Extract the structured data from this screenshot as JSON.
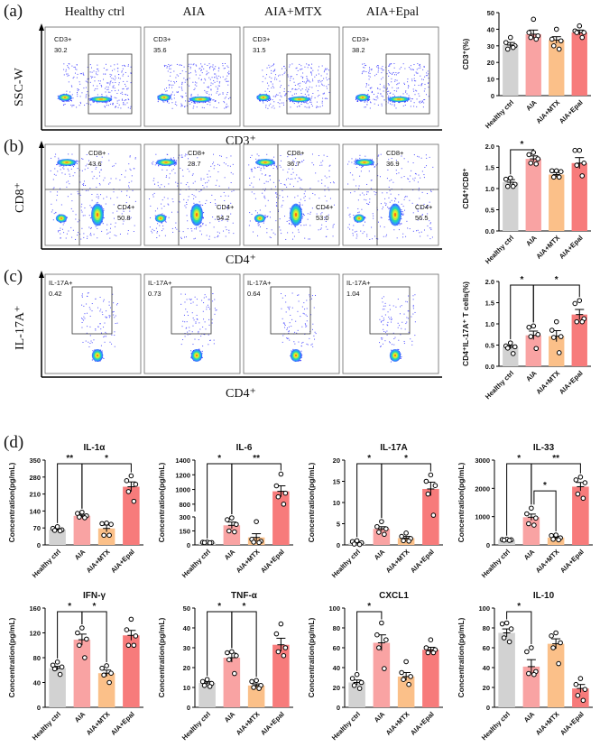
{
  "panel_labels": [
    "(a)",
    "(b)",
    "(c)",
    "(d)"
  ],
  "groups": [
    "Healthy ctrl",
    "AIA",
    "AIA+MTX",
    "AIA+Epal"
  ],
  "colors": {
    "Healthy ctrl": "#d2d2d2",
    "AIA": "#f9a3a3",
    "AIA+MTX": "#fbc089",
    "AIA+Epal": "#f77b7b"
  },
  "flow": {
    "a": {
      "y_label": "SSC-W",
      "x_label": "CD3⁺",
      "gates": [
        {
          "name": "CD3+",
          "value": "30.2"
        },
        {
          "name": "CD3+",
          "value": "35.6"
        },
        {
          "name": "CD3+",
          "value": "31.5"
        },
        {
          "name": "CD3+",
          "value": "38.2"
        }
      ]
    },
    "b": {
      "y_label": "CD8⁺",
      "x_label": "CD4⁺",
      "gates": [
        {
          "cd8": "CD8+",
          "cd8_value": "43.6",
          "cd4": "CD4+",
          "cd4_value": "50.8"
        },
        {
          "cd8": "CD8+",
          "cd8_value": "28.7",
          "cd4": "CD4+",
          "cd4_value": "54.2"
        },
        {
          "cd8": "CD8+",
          "cd8_value": "36.7",
          "cd4": "CD4+",
          "cd4_value": "53.0"
        },
        {
          "cd8": "CD8+",
          "cd8_value": "36.9",
          "cd4": "CD4+",
          "cd4_value": "56.5"
        }
      ]
    },
    "c": {
      "y_label": "IL-17A⁺",
      "x_label": "CD4⁺",
      "gates": [
        {
          "name": "IL-17A+",
          "value": "0.42"
        },
        {
          "name": "IL-17A+",
          "value": "0.73"
        },
        {
          "name": "IL-17A+",
          "value": "0.64"
        },
        {
          "name": "IL-17A+",
          "value": "1.04"
        }
      ]
    }
  },
  "chart_data": [
    {
      "type": "bar",
      "id": "cd3",
      "title": "",
      "ylabel": "CD3⁺(%)",
      "ylim": [
        0,
        50
      ],
      "yticks": [
        0,
        10,
        20,
        30,
        40,
        50
      ],
      "categories": [
        "Healthy ctrl",
        "AIA",
        "AIA+MTX",
        "AIA+Epal"
      ],
      "values": [
        30.5,
        37,
        33.5,
        38
      ],
      "sem": [
        1.5,
        2.5,
        2,
        1.5
      ],
      "points": [
        [
          35,
          32,
          30,
          28,
          29
        ],
        [
          46,
          38,
          36,
          35,
          34
        ],
        [
          40,
          34,
          33,
          30,
          28
        ],
        [
          42,
          39,
          38,
          38,
          35
        ]
      ],
      "significance": []
    },
    {
      "type": "bar",
      "id": "cd4cd8",
      "title": "",
      "ylabel": "CD4⁺/CD8⁺",
      "ylim": [
        0,
        2
      ],
      "yticks": [
        0.0,
        0.5,
        1.0,
        1.5,
        2.0
      ],
      "categories": [
        "Healthy ctrl",
        "AIA",
        "AIA+MTX",
        "AIA+Epal"
      ],
      "values": [
        1.15,
        1.7,
        1.33,
        1.6
      ],
      "sem": [
        0.06,
        0.07,
        0.05,
        0.13
      ],
      "points": [
        [
          1.25,
          1.22,
          1.1,
          1.05,
          1.05
        ],
        [
          1.85,
          1.8,
          1.7,
          1.6,
          1.58
        ],
        [
          1.42,
          1.42,
          1.4,
          1.27,
          1.27
        ],
        [
          1.9,
          1.9,
          1.6,
          1.55,
          1.3
        ]
      ],
      "significance": [
        {
          "from": 0,
          "to": 1,
          "label": "*",
          "level": 0
        }
      ]
    },
    {
      "type": "bar",
      "id": "il17t",
      "title": "",
      "ylabel": "CD4⁺IL-17A⁺ T cells(%)",
      "ylim": [
        0,
        2
      ],
      "yticks": [
        0.0,
        0.5,
        1.0,
        1.5,
        2.0
      ],
      "categories": [
        "Healthy ctrl",
        "AIA",
        "AIA+MTX",
        "AIA+Epal"
      ],
      "values": [
        0.45,
        0.73,
        0.71,
        1.22
      ],
      "sem": [
        0.04,
        0.1,
        0.13,
        0.12
      ],
      "points": [
        [
          0.55,
          0.48,
          0.46,
          0.43,
          0.3
        ],
        [
          0.95,
          0.92,
          0.75,
          0.7,
          0.42
        ],
        [
          1.05,
          0.85,
          0.7,
          0.68,
          0.32
        ],
        [
          1.55,
          1.48,
          1.12,
          1.05,
          1.05
        ]
      ],
      "significance": [
        {
          "from": 0,
          "to": 1,
          "label": "*",
          "level": 0
        },
        {
          "from": 1,
          "to": 3,
          "label": "*",
          "level": 0
        }
      ]
    },
    {
      "type": "bar",
      "id": "il1a",
      "title": "IL-1α",
      "ylabel": "Concentration(pg/mL)",
      "ylim": [
        0,
        350
      ],
      "yticks": [
        0,
        70,
        140,
        210,
        280,
        350
      ],
      "categories": [
        "Healthy ctrl",
        "AIA",
        "AIA+MTX",
        "AIA+Epal"
      ],
      "values": [
        63,
        120,
        68,
        240
      ],
      "sem": [
        4,
        6,
        14,
        20
      ],
      "points": [
        [
          75,
          68,
          62,
          60,
          58
        ],
        [
          135,
          130,
          120,
          115,
          112
        ],
        [
          90,
          88,
          85,
          40,
          40
        ],
        [
          285,
          265,
          250,
          220,
          180
        ]
      ],
      "significance": [
        {
          "from": 0,
          "to": 1,
          "label": "**",
          "level": 0
        },
        {
          "from": 1,
          "to": 3,
          "label": "*",
          "level": 0
        }
      ]
    },
    {
      "type": "bar",
      "id": "il6",
      "title": "IL-6",
      "ylabel": "Concentration(pg/mL)",
      "ylim": [
        0,
        1400
      ],
      "axis_break": [
        300,
        700
      ],
      "yticks": [
        0,
        150,
        300,
        800,
        1000,
        1200,
        1400
      ],
      "categories": [
        "Healthy ctrl",
        "AIA",
        "AIA+MTX",
        "AIA+Epal"
      ],
      "values": [
        25,
        210,
        80,
        975
      ],
      "sem": [
        3,
        35,
        40,
        75
      ],
      "points": [
        [
          30,
          28,
          25,
          25,
          22
        ],
        [
          290,
          270,
          220,
          150,
          140
        ],
        [
          250,
          60,
          40,
          30,
          25
        ],
        [
          1210,
          1050,
          950,
          900,
          800
        ]
      ],
      "significance": [
        {
          "from": 0,
          "to": 1,
          "label": "*",
          "level": 0
        },
        {
          "from": 1,
          "to": 3,
          "label": "**",
          "level": 0
        }
      ]
    },
    {
      "type": "bar",
      "id": "il17a",
      "title": "IL-17A",
      "ylabel": "Concentration(pg/mL)",
      "ylim": [
        0,
        20
      ],
      "yticks": [
        0,
        5,
        10,
        15,
        20
      ],
      "categories": [
        "Healthy ctrl",
        "AIA",
        "AIA+MTX",
        "AIA+Epal"
      ],
      "values": [
        0.5,
        3.8,
        1.6,
        13.2
      ],
      "sem": [
        0.2,
        0.5,
        0.4,
        1.6
      ],
      "points": [
        [
          1.0,
          0.8,
          0.5,
          0.2,
          0.1
        ],
        [
          5.5,
          4.3,
          3.8,
          3,
          2.5
        ],
        [
          2.8,
          2,
          1.5,
          1,
          0.9
        ],
        [
          16.5,
          15,
          14,
          12,
          7
        ]
      ],
      "significance": [
        {
          "from": 0,
          "to": 1,
          "label": "*",
          "level": 0
        },
        {
          "from": 1,
          "to": 3,
          "label": "*",
          "level": 0
        }
      ]
    },
    {
      "type": "bar",
      "id": "il33",
      "title": "IL-33",
      "ylabel": "Concentration(pg/mL)",
      "ylim": [
        0,
        3000
      ],
      "yticks": [
        0,
        1000,
        2000,
        3000
      ],
      "categories": [
        "Healthy ctrl",
        "AIA",
        "AIA+MTX",
        "AIA+Epal"
      ],
      "values": [
        180,
        980,
        260,
        2060
      ],
      "sem": [
        10,
        110,
        40,
        150
      ],
      "points": [
        [
          200,
          190,
          180,
          170,
          160
        ],
        [
          1300,
          1100,
          950,
          750,
          700
        ],
        [
          350,
          330,
          250,
          200,
          180
        ],
        [
          2400,
          2300,
          2200,
          1800,
          1650
        ]
      ],
      "significance": [
        {
          "from": 0,
          "to": 1,
          "label": "*",
          "level": 0
        },
        {
          "from": 1,
          "to": 3,
          "label": "**",
          "level": 0
        },
        {
          "from": 1,
          "to": 2,
          "label": "*",
          "level": 1
        }
      ]
    },
    {
      "type": "bar",
      "id": "ifng",
      "title": "IFN-γ",
      "ylabel": "Concentration(pg/mL)",
      "ylim": [
        0,
        160
      ],
      "yticks": [
        0,
        40,
        80,
        120,
        160
      ],
      "categories": [
        "Healthy ctrl",
        "AIA",
        "AIA+MTX",
        "AIA+Epal"
      ],
      "values": [
        63,
        109,
        55,
        116
      ],
      "sem": [
        3,
        9,
        5,
        8
      ],
      "points": [
        [
          73,
          68,
          65,
          62,
          53
        ],
        [
          128,
          120,
          110,
          100,
          80
        ],
        [
          67,
          63,
          55,
          52,
          40
        ],
        [
          142,
          125,
          115,
          100,
          100
        ]
      ],
      "significance": [
        {
          "from": 0,
          "to": 1,
          "label": "*",
          "level": 0
        },
        {
          "from": 1,
          "to": 2,
          "label": "*",
          "level": 0
        }
      ]
    },
    {
      "type": "bar",
      "id": "tnfa",
      "title": "TNF-α",
      "ylabel": "Concentration(pg/mL)",
      "ylim": [
        0,
        50
      ],
      "yticks": [
        0,
        10,
        20,
        30,
        40,
        50
      ],
      "categories": [
        "Healthy ctrl",
        "AIA",
        "AIA+MTX",
        "AIA+Epal"
      ],
      "values": [
        12.3,
        25,
        11,
        31.5
      ],
      "sem": [
        0.7,
        2.3,
        0.8,
        3.3
      ],
      "points": [
        [
          14,
          13,
          12,
          11,
          10.5
        ],
        [
          28,
          27.5,
          26,
          24,
          17
        ],
        [
          13.5,
          13,
          11,
          10,
          9.5
        ],
        [
          42,
          37,
          30,
          28,
          26
        ]
      ],
      "significance": [
        {
          "from": 0,
          "to": 1,
          "label": "*",
          "level": 0
        },
        {
          "from": 1,
          "to": 2,
          "label": "*",
          "level": 0
        }
      ]
    },
    {
      "type": "bar",
      "id": "cxcl1",
      "title": "CXCL1",
      "ylabel": "Concentration(pg/mL)",
      "ylim": [
        0,
        100
      ],
      "yticks": [
        0,
        20,
        40,
        60,
        80,
        100
      ],
      "categories": [
        "Healthy ctrl",
        "AIA",
        "AIA+MTX",
        "AIA+Epal"
      ],
      "values": [
        25,
        65,
        31,
        58
      ],
      "sem": [
        2.5,
        8,
        4,
        2.5
      ],
      "points": [
        [
          33,
          29,
          25,
          22,
          19
        ],
        [
          85,
          73,
          68,
          60,
          39
        ],
        [
          46,
          35,
          31,
          28,
          23
        ],
        [
          68,
          60,
          58,
          55,
          55
        ]
      ],
      "significance": [
        {
          "from": 0,
          "to": 1,
          "label": "*",
          "level": 0
        }
      ]
    },
    {
      "type": "bar",
      "id": "il10",
      "title": "IL-10",
      "ylabel": "Concentration(pg/mL)",
      "ylim": [
        0,
        100
      ],
      "yticks": [
        0,
        20,
        40,
        60,
        80,
        100
      ],
      "categories": [
        "Healthy ctrl",
        "AIA",
        "AIA+MTX",
        "AIA+Epal"
      ],
      "values": [
        75,
        41,
        64,
        19
      ],
      "sem": [
        4,
        7,
        5,
        4
      ],
      "points": [
        [
          85,
          84,
          79,
          70,
          66
        ],
        [
          60,
          56,
          36,
          34,
          33
        ],
        [
          75,
          72,
          65,
          60,
          44
        ],
        [
          29,
          23,
          18,
          12,
          7
        ]
      ],
      "significance": [
        {
          "from": 0,
          "to": 1,
          "label": "*",
          "level": 0
        }
      ]
    }
  ]
}
